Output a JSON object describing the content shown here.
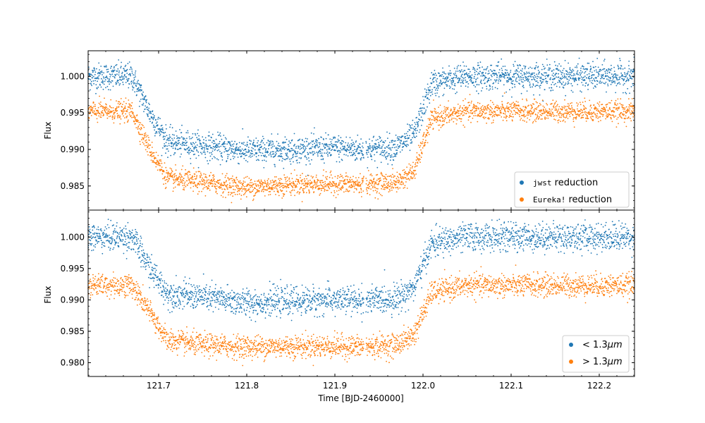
{
  "chart_data": [
    {
      "type": "scatter",
      "panel": "top",
      "xlabel": "",
      "ylabel": "Flux",
      "xlim": [
        121.62,
        122.24
      ],
      "ylim": [
        0.9817,
        1.0035
      ],
      "yticks": [
        "1.000",
        "0.995",
        "0.990",
        "0.985"
      ],
      "ytick_values": [
        1.0,
        0.995,
        0.99,
        0.985
      ],
      "legend_location": "lower-right",
      "series": [
        {
          "name": "jwst reduction",
          "legend_code": "jwst",
          "legend_suffix": " reduction",
          "color": "#1f77b4",
          "baseline": 1.0,
          "depth": 0.01,
          "scatter": 0.0009,
          "x": [
            121.62,
            121.67,
            121.69,
            121.71,
            121.75,
            121.8,
            121.85,
            121.9,
            121.93,
            121.97,
            121.99,
            122.01,
            122.05,
            122.1,
            122.15,
            122.2,
            122.24
          ],
          "y": [
            1.0,
            1.0,
            0.995,
            0.991,
            0.9905,
            0.9898,
            0.99,
            0.9902,
            0.99,
            0.9903,
            0.992,
            0.999,
            1.0,
            1.0,
            1.0,
            1.0,
            1.0
          ]
        },
        {
          "name": "Eureka! reduction",
          "legend_code": "Eureka!",
          "legend_suffix": " reduction",
          "color": "#ff7f0e",
          "baseline": 0.9952,
          "depth": 0.01,
          "scatter": 0.0007,
          "x": [
            121.62,
            121.67,
            121.69,
            121.71,
            121.75,
            121.8,
            121.85,
            121.9,
            121.93,
            121.97,
            121.99,
            122.01,
            122.05,
            122.1,
            122.15,
            122.2,
            122.24
          ],
          "y": [
            0.9952,
            0.9952,
            0.99,
            0.986,
            0.9855,
            0.9848,
            0.9852,
            0.9853,
            0.9852,
            0.9855,
            0.987,
            0.9942,
            0.9952,
            0.9952,
            0.9952,
            0.9952,
            0.9952
          ]
        }
      ]
    },
    {
      "type": "scatter",
      "panel": "bottom",
      "xlabel": "Time [BJD-2460000]",
      "ylabel": "Flux",
      "xlim": [
        121.62,
        122.24
      ],
      "ylim": [
        0.9778,
        1.0043
      ],
      "xticks": [
        "121.7",
        "121.8",
        "121.9",
        "122.0",
        "122.1",
        "122.2"
      ],
      "xtick_values": [
        121.7,
        121.8,
        121.9,
        122.0,
        122.1,
        122.2
      ],
      "yticks": [
        "1.000",
        "0.995",
        "0.990",
        "0.985",
        "0.980"
      ],
      "ytick_values": [
        1.0,
        0.995,
        0.99,
        0.985,
        0.98
      ],
      "legend_location": "lower-right",
      "series": [
        {
          "name": "< 1.3μm",
          "legend_op": "<",
          "legend_value": "1.3",
          "legend_unit": "μm",
          "color": "#1f77b4",
          "baseline": 1.0,
          "depth": 0.01,
          "scatter": 0.0011,
          "x": [
            121.62,
            121.67,
            121.69,
            121.71,
            121.75,
            121.8,
            121.85,
            121.9,
            121.93,
            121.97,
            121.99,
            122.01,
            122.05,
            122.1,
            122.15,
            122.2,
            122.24
          ],
          "y": [
            1.0,
            1.0,
            0.995,
            0.991,
            0.9905,
            0.9895,
            0.9898,
            0.99,
            0.9898,
            0.9902,
            0.992,
            0.999,
            1.0,
            1.0,
            1.0,
            1.0,
            1.0
          ]
        },
        {
          "name": "> 1.3μm",
          "legend_op": ">",
          "legend_value": "1.3",
          "legend_unit": "μm",
          "color": "#ff7f0e",
          "baseline": 0.9923,
          "depth": 0.0098,
          "scatter": 0.0009,
          "x": [
            121.62,
            121.67,
            121.69,
            121.71,
            121.75,
            121.8,
            121.85,
            121.9,
            121.93,
            121.97,
            121.99,
            122.01,
            122.05,
            122.1,
            122.15,
            122.2,
            122.24
          ],
          "y": [
            0.9923,
            0.9923,
            0.988,
            0.9835,
            0.9828,
            0.9825,
            0.9826,
            0.9826,
            0.9825,
            0.9828,
            0.9845,
            0.9912,
            0.9923,
            0.9923,
            0.9923,
            0.9923,
            0.9923
          ]
        }
      ]
    }
  ]
}
